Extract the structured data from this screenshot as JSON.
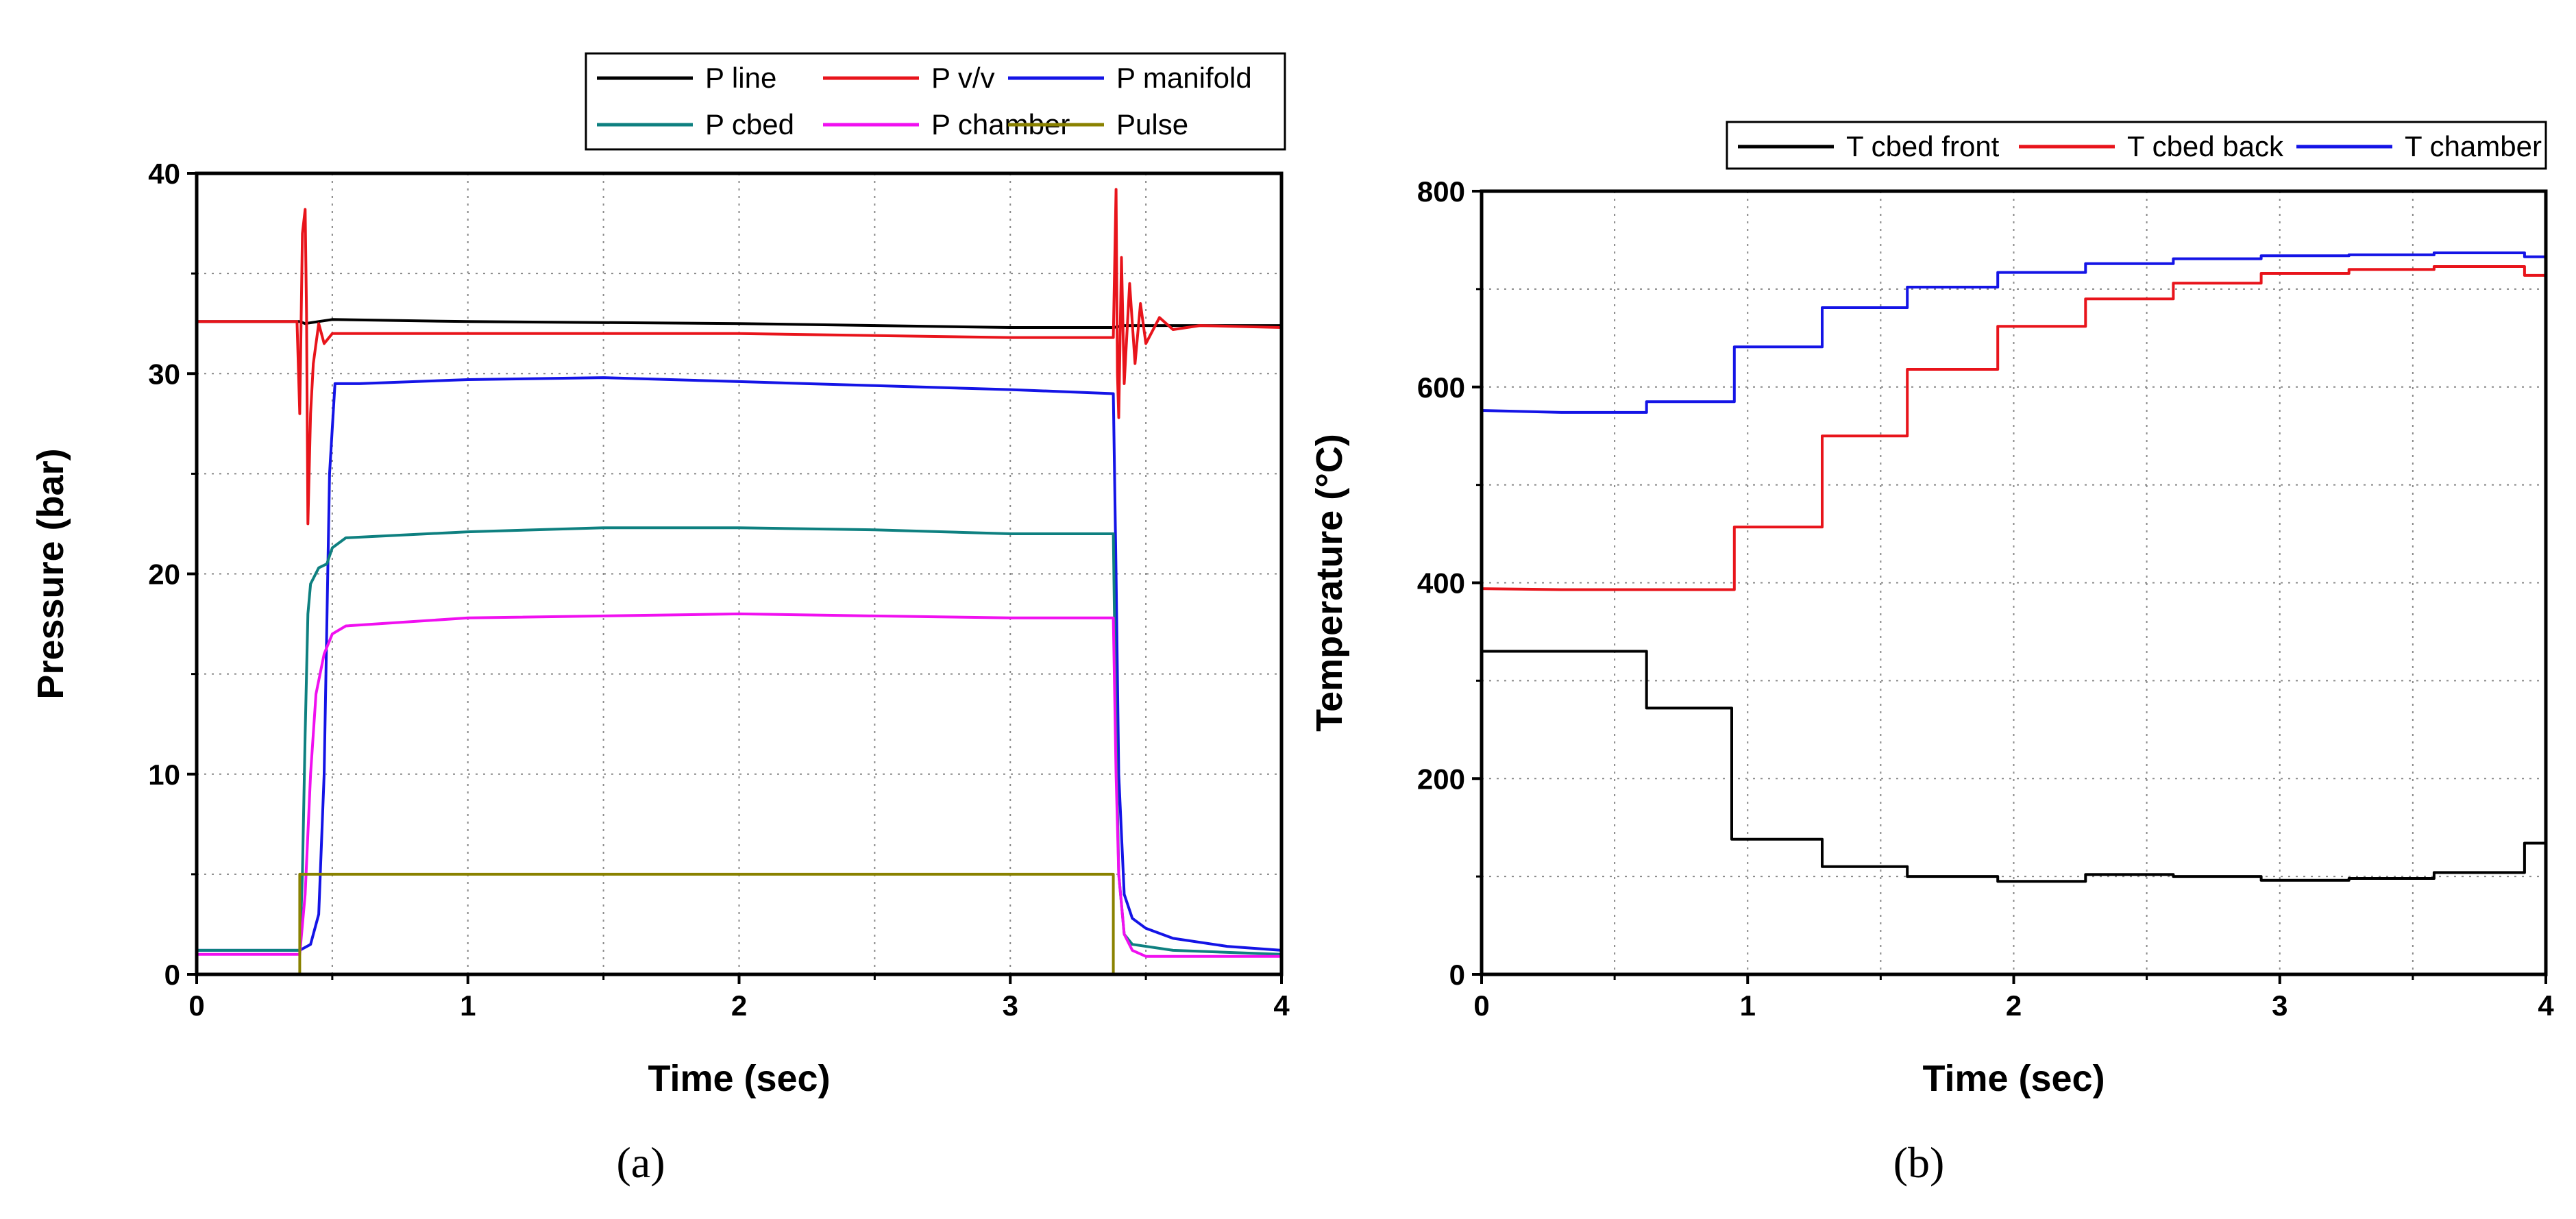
{
  "chart_data": [
    {
      "type": "line",
      "caption": "(a)",
      "xlabel": "Time (sec)",
      "ylabel": "Pressure (bar)",
      "xlim": [
        0,
        4
      ],
      "ylim": [
        0,
        40
      ],
      "xticks": [
        0,
        1,
        2,
        3,
        4
      ],
      "yticks": [
        0,
        10,
        20,
        30,
        40
      ],
      "grid": "dotted",
      "legend_position": "top-right, above plot",
      "series": [
        {
          "name": "P line",
          "color": "#000000",
          "points": [
            [
              0,
              32.6
            ],
            [
              0.38,
              32.6
            ],
            [
              0.4,
              32.5
            ],
            [
              0.5,
              32.7
            ],
            [
              1,
              32.6
            ],
            [
              2,
              32.5
            ],
            [
              3,
              32.3
            ],
            [
              3.38,
              32.3
            ],
            [
              3.42,
              32.4
            ],
            [
              4,
              32.4
            ]
          ]
        },
        {
          "name": "P v/v",
          "color": "#e8141b",
          "points": [
            [
              0,
              32.6
            ],
            [
              0.37,
              32.6
            ],
            [
              0.38,
              28
            ],
            [
              0.39,
              37
            ],
            [
              0.4,
              38.2
            ],
            [
              0.405,
              33
            ],
            [
              0.41,
              22.5
            ],
            [
              0.42,
              28
            ],
            [
              0.43,
              30.5
            ],
            [
              0.45,
              32.5
            ],
            [
              0.47,
              31.5
            ],
            [
              0.5,
              32
            ],
            [
              1,
              32
            ],
            [
              2,
              32
            ],
            [
              3,
              31.8
            ],
            [
              3.38,
              31.8
            ],
            [
              3.39,
              39.2
            ],
            [
              3.395,
              30
            ],
            [
              3.4,
              27.8
            ],
            [
              3.41,
              35.8
            ],
            [
              3.42,
              29.5
            ],
            [
              3.44,
              34.5
            ],
            [
              3.46,
              30.5
            ],
            [
              3.48,
              33.5
            ],
            [
              3.5,
              31.5
            ],
            [
              3.55,
              32.8
            ],
            [
              3.6,
              32.2
            ],
            [
              3.7,
              32.4
            ],
            [
              4,
              32.3
            ]
          ]
        },
        {
          "name": "P manifold",
          "color": "#1414e6",
          "points": [
            [
              0,
              1.2
            ],
            [
              0.38,
              1.2
            ],
            [
              0.42,
              1.5
            ],
            [
              0.45,
              3
            ],
            [
              0.47,
              10
            ],
            [
              0.49,
              25
            ],
            [
              0.51,
              29.5
            ],
            [
              0.6,
              29.5
            ],
            [
              1,
              29.7
            ],
            [
              1.5,
              29.8
            ],
            [
              2,
              29.6
            ],
            [
              2.5,
              29.4
            ],
            [
              3,
              29.2
            ],
            [
              3.38,
              29
            ],
            [
              3.39,
              20
            ],
            [
              3.4,
              10
            ],
            [
              3.42,
              4
            ],
            [
              3.45,
              2.8
            ],
            [
              3.5,
              2.3
            ],
            [
              3.6,
              1.8
            ],
            [
              3.8,
              1.4
            ],
            [
              4,
              1.2
            ]
          ]
        },
        {
          "name": "P cbed",
          "color": "#0e8080",
          "points": [
            [
              0,
              1.2
            ],
            [
              0.38,
              1.2
            ],
            [
              0.39,
              5
            ],
            [
              0.4,
              12
            ],
            [
              0.41,
              18
            ],
            [
              0.42,
              19.5
            ],
            [
              0.45,
              20.3
            ],
            [
              0.48,
              20.5
            ],
            [
              0.5,
              21.3
            ],
            [
              0.55,
              21.8
            ],
            [
              1,
              22.1
            ],
            [
              1.5,
              22.3
            ],
            [
              2,
              22.3
            ],
            [
              2.5,
              22.2
            ],
            [
              3,
              22
            ],
            [
              3.38,
              22
            ],
            [
              3.39,
              12
            ],
            [
              3.4,
              5
            ],
            [
              3.42,
              2
            ],
            [
              3.45,
              1.5
            ],
            [
              3.6,
              1.2
            ],
            [
              4,
              1
            ]
          ]
        },
        {
          "name": "P chamber",
          "color": "#f010f0",
          "points": [
            [
              0,
              1
            ],
            [
              0.38,
              1
            ],
            [
              0.4,
              4
            ],
            [
              0.42,
              10
            ],
            [
              0.44,
              14
            ],
            [
              0.47,
              16
            ],
            [
              0.5,
              17
            ],
            [
              0.55,
              17.4
            ],
            [
              1,
              17.8
            ],
            [
              2,
              18
            ],
            [
              2.5,
              17.9
            ],
            [
              3,
              17.8
            ],
            [
              3.38,
              17.8
            ],
            [
              3.39,
              10
            ],
            [
              3.4,
              5
            ],
            [
              3.42,
              2
            ],
            [
              3.45,
              1.2
            ],
            [
              3.5,
              0.9
            ],
            [
              4,
              0.9
            ]
          ]
        },
        {
          "name": "Pulse",
          "color": "#8a8200",
          "points": [
            [
              0,
              0
            ],
            [
              0.38,
              0
            ],
            [
              0.38,
              5
            ],
            [
              3.38,
              5
            ],
            [
              3.38,
              0
            ],
            [
              4,
              0
            ]
          ]
        }
      ]
    },
    {
      "type": "line",
      "caption": "(b)",
      "xlabel": "Time (sec)",
      "ylabel": "Temperature (°C)",
      "xlim": [
        0,
        4
      ],
      "ylim": [
        0,
        800
      ],
      "xticks": [
        0,
        1,
        2,
        3,
        4
      ],
      "yticks": [
        0,
        200,
        400,
        600,
        800
      ],
      "grid": "dotted",
      "legend_position": "top-right, above plot",
      "series": [
        {
          "name": "T cbed front",
          "color": "#000000",
          "points": [
            [
              0,
              330
            ],
            [
              0.62,
              330
            ],
            [
              0.62,
              272
            ],
            [
              0.94,
              272
            ],
            [
              0.94,
              138
            ],
            [
              1.28,
              138
            ],
            [
              1.28,
              110
            ],
            [
              1.6,
              110
            ],
            [
              1.6,
              100
            ],
            [
              1.94,
              100
            ],
            [
              1.94,
              95
            ],
            [
              2.27,
              95
            ],
            [
              2.27,
              102
            ],
            [
              2.6,
              102
            ],
            [
              2.6,
              100
            ],
            [
              2.93,
              100
            ],
            [
              2.93,
              96
            ],
            [
              3.26,
              96
            ],
            [
              3.26,
              98
            ],
            [
              3.58,
              98
            ],
            [
              3.58,
              104
            ],
            [
              3.92,
              104
            ],
            [
              3.92,
              134
            ],
            [
              4,
              134
            ]
          ]
        },
        {
          "name": "T cbed back",
          "color": "#e8141b",
          "points": [
            [
              0,
              394
            ],
            [
              0.3,
              393
            ],
            [
              0.95,
              393
            ],
            [
              0.95,
              457
            ],
            [
              1.28,
              457
            ],
            [
              1.28,
              550
            ],
            [
              1.6,
              550
            ],
            [
              1.6,
              618
            ],
            [
              1.94,
              618
            ],
            [
              1.94,
              662
            ],
            [
              2.27,
              662
            ],
            [
              2.27,
              690
            ],
            [
              2.6,
              690
            ],
            [
              2.6,
              706
            ],
            [
              2.93,
              706
            ],
            [
              2.93,
              716
            ],
            [
              3.26,
              716
            ],
            [
              3.26,
              720
            ],
            [
              3.58,
              720
            ],
            [
              3.58,
              723
            ],
            [
              3.92,
              723
            ],
            [
              3.92,
              714
            ],
            [
              4,
              714
            ]
          ]
        },
        {
          "name": "T chamber",
          "color": "#1414e6",
          "points": [
            [
              0,
              576
            ],
            [
              0.3,
              574
            ],
            [
              0.62,
              574
            ],
            [
              0.62,
              585
            ],
            [
              0.95,
              585
            ],
            [
              0.95,
              641
            ],
            [
              1.28,
              641
            ],
            [
              1.28,
              681
            ],
            [
              1.6,
              681
            ],
            [
              1.6,
              702
            ],
            [
              1.94,
              702
            ],
            [
              1.94,
              717
            ],
            [
              2.27,
              717
            ],
            [
              2.27,
              726
            ],
            [
              2.6,
              726
            ],
            [
              2.6,
              731
            ],
            [
              2.93,
              731
            ],
            [
              2.93,
              734
            ],
            [
              3.26,
              734
            ],
            [
              3.26,
              735
            ],
            [
              3.58,
              735
            ],
            [
              3.58,
              737
            ],
            [
              3.92,
              737
            ],
            [
              3.92,
              733
            ],
            [
              4,
              733
            ]
          ]
        }
      ]
    }
  ]
}
